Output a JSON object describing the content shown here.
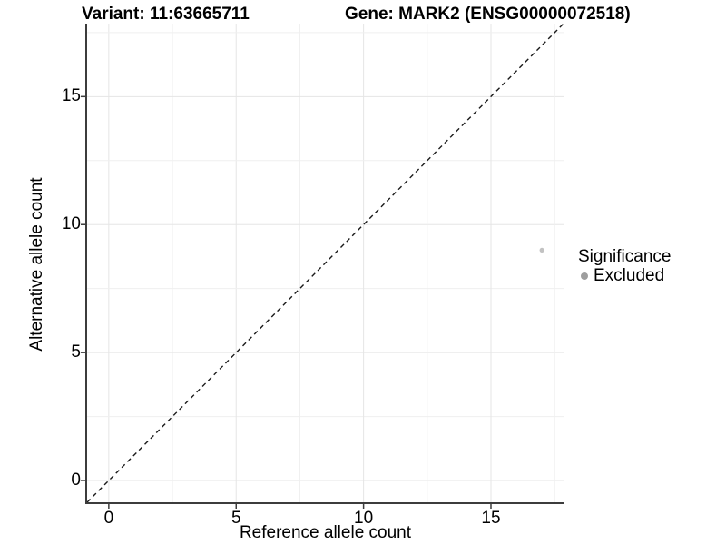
{
  "colors": {
    "axis": "#3c3c3c",
    "grid_major": "#e5e5e5",
    "grid_minor": "#efefef",
    "identity_line": "#1a1a1a",
    "point": "#c2c2c2",
    "text": "#000000"
  },
  "chart_data": {
    "type": "scatter",
    "title_left": "Variant: 11:63665711",
    "title_right": "Gene: MARK2 (ENSG00000072518)",
    "xlabel": "Reference allele count",
    "ylabel": "Alternative allele count",
    "xlim": [
      -0.85,
      17.85
    ],
    "ylim": [
      -0.85,
      17.85
    ],
    "xticks": [
      0,
      5,
      10,
      15
    ],
    "yticks": [
      0,
      5,
      10,
      15
    ],
    "grid": {
      "start": 0,
      "end": 17.5,
      "step": 2.5,
      "major_every": 5
    },
    "points": [
      {
        "x": 17,
        "y": 9,
        "significance": "Excluded"
      }
    ],
    "identity_line": {
      "slope": 1,
      "intercept": 0,
      "style": "dashed"
    },
    "legend": {
      "title": "Significance",
      "position": "right",
      "items": [
        {
          "label": "Excluded",
          "color": "#9e9e9e",
          "marker": "circle"
        }
      ]
    }
  }
}
